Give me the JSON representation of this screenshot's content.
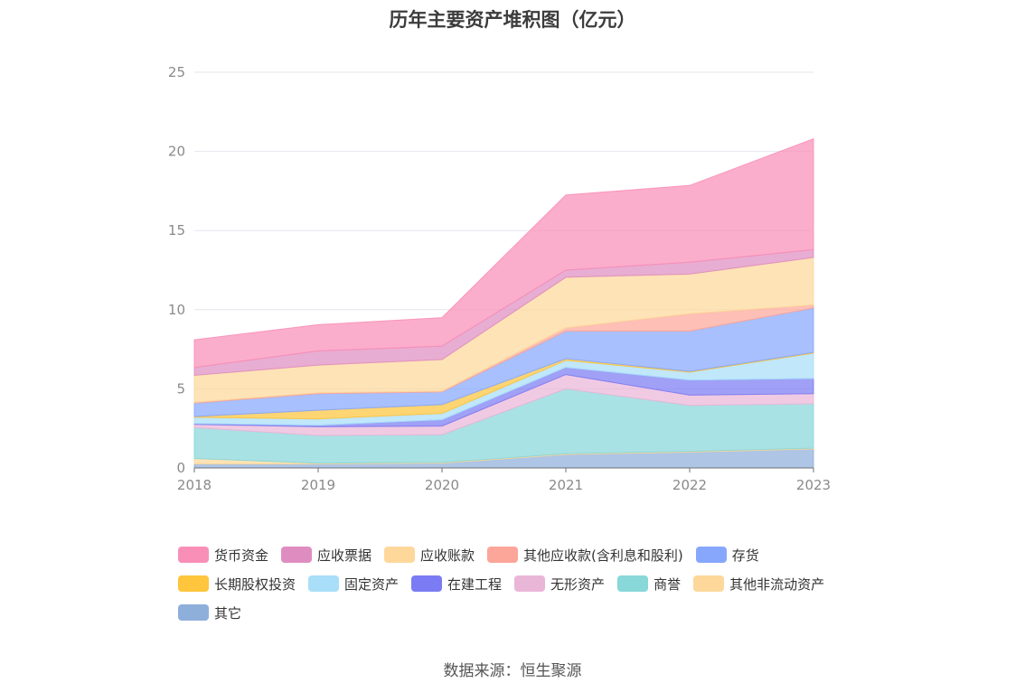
{
  "chart_data": {
    "type": "area",
    "title": "历年主要资产堆积图（亿元）",
    "source": "数据来源：恒生聚源",
    "x": [
      "2018",
      "2019",
      "2020",
      "2021",
      "2022",
      "2023"
    ],
    "ylim": [
      0,
      25
    ],
    "yticks": [
      "0",
      "5",
      "10",
      "15",
      "20",
      "25"
    ],
    "grid": true,
    "legend_position": "bottom",
    "series": [
      {
        "name": "其它",
        "color": "#8fafdb",
        "values": [
          0.25,
          0.25,
          0.3,
          0.85,
          1.0,
          1.2
        ]
      },
      {
        "name": "其他非流动资产",
        "color": "#fdd89a",
        "values": [
          0.35,
          0.05,
          0.05,
          0.05,
          0.05,
          0.05
        ]
      },
      {
        "name": "商誉",
        "color": "#88d7d9",
        "values": [
          1.95,
          1.75,
          1.75,
          4.1,
          2.9,
          2.8
        ]
      },
      {
        "name": "无形资产",
        "color": "#eab6d8",
        "values": [
          0.2,
          0.55,
          0.55,
          0.9,
          0.65,
          0.65
        ]
      },
      {
        "name": "在建工程",
        "color": "#7b7cf3",
        "values": [
          0.05,
          0.1,
          0.4,
          0.45,
          0.95,
          0.95
        ]
      },
      {
        "name": "固定资产",
        "color": "#a8def8",
        "values": [
          0.4,
          0.4,
          0.4,
          0.45,
          0.5,
          1.6
        ]
      },
      {
        "name": "长期股权投资",
        "color": "#fec53d",
        "values": [
          0.05,
          0.55,
          0.55,
          0.1,
          0.05,
          0.05
        ]
      },
      {
        "name": "存货",
        "color": "#87a7fc",
        "values": [
          0.85,
          1.05,
          0.8,
          1.75,
          2.55,
          2.8
        ]
      },
      {
        "name": "其他应收款(含利息和股利)",
        "color": "#fca69a",
        "values": [
          0.05,
          0.05,
          0.05,
          0.2,
          1.1,
          0.2
        ]
      },
      {
        "name": "应收账款",
        "color": "#fed89b",
        "values": [
          1.7,
          1.75,
          2.0,
          3.2,
          2.5,
          3.0
        ]
      },
      {
        "name": "应收票据",
        "color": "#df8dc0",
        "values": [
          0.5,
          0.9,
          0.85,
          0.45,
          0.75,
          0.5
        ]
      },
      {
        "name": "货币资金",
        "color": "#f98fb7",
        "values": [
          1.75,
          1.65,
          1.8,
          4.75,
          4.85,
          7.0
        ]
      }
    ],
    "legend_rows": [
      [
        "货币资金",
        "应收票据",
        "应收账款",
        "其他应收款(含利息和股利)",
        "存货"
      ],
      [
        "长期股权投资",
        "固定资产",
        "在建工程",
        "无形资产",
        "商誉",
        "其他非流动资产"
      ],
      [
        "其它"
      ]
    ]
  }
}
